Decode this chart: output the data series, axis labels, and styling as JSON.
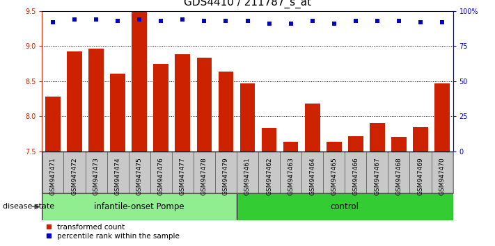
{
  "title": "GDS4410 / 211787_s_at",
  "samples": [
    "GSM947471",
    "GSM947472",
    "GSM947473",
    "GSM947474",
    "GSM947475",
    "GSM947476",
    "GSM947477",
    "GSM947478",
    "GSM947479",
    "GSM947461",
    "GSM947462",
    "GSM947463",
    "GSM947464",
    "GSM947465",
    "GSM947466",
    "GSM947467",
    "GSM947468",
    "GSM947469",
    "GSM947470"
  ],
  "bar_values": [
    8.28,
    8.92,
    8.96,
    8.61,
    9.49,
    8.75,
    8.88,
    8.84,
    8.64,
    8.47,
    7.83,
    7.64,
    8.18,
    7.64,
    7.72,
    7.9,
    7.71,
    7.84,
    8.47
  ],
  "dot_values": [
    92,
    94,
    94,
    93,
    94,
    93,
    94,
    93,
    93,
    93,
    91,
    91,
    93,
    91,
    93,
    93,
    93,
    92,
    92
  ],
  "group1_count": 9,
  "group2_count": 10,
  "group1_label": "infantile-onset Pompe",
  "group2_label": "control",
  "group1_color": "#90EE90",
  "group2_color": "#33CC33",
  "bar_color": "#CC2200",
  "dot_color": "#0000CC",
  "ylim_left": [
    7.5,
    9.5
  ],
  "ylim_right": [
    0,
    100
  ],
  "yticks_left": [
    7.5,
    8.0,
    8.5,
    9.0,
    9.5
  ],
  "yticks_right": [
    0,
    25,
    50,
    75,
    100
  ],
  "ytick_labels_right": [
    "0",
    "25",
    "50",
    "75",
    "100%"
  ],
  "grid_lines": [
    8.0,
    8.5,
    9.0
  ],
  "legend_items": [
    {
      "label": "transformed count",
      "color": "#CC2200"
    },
    {
      "label": "percentile rank within the sample",
      "color": "#0000CC"
    }
  ],
  "disease_state_label": "disease state",
  "title_fontsize": 11,
  "tick_fontsize": 7,
  "bar_width": 0.7
}
